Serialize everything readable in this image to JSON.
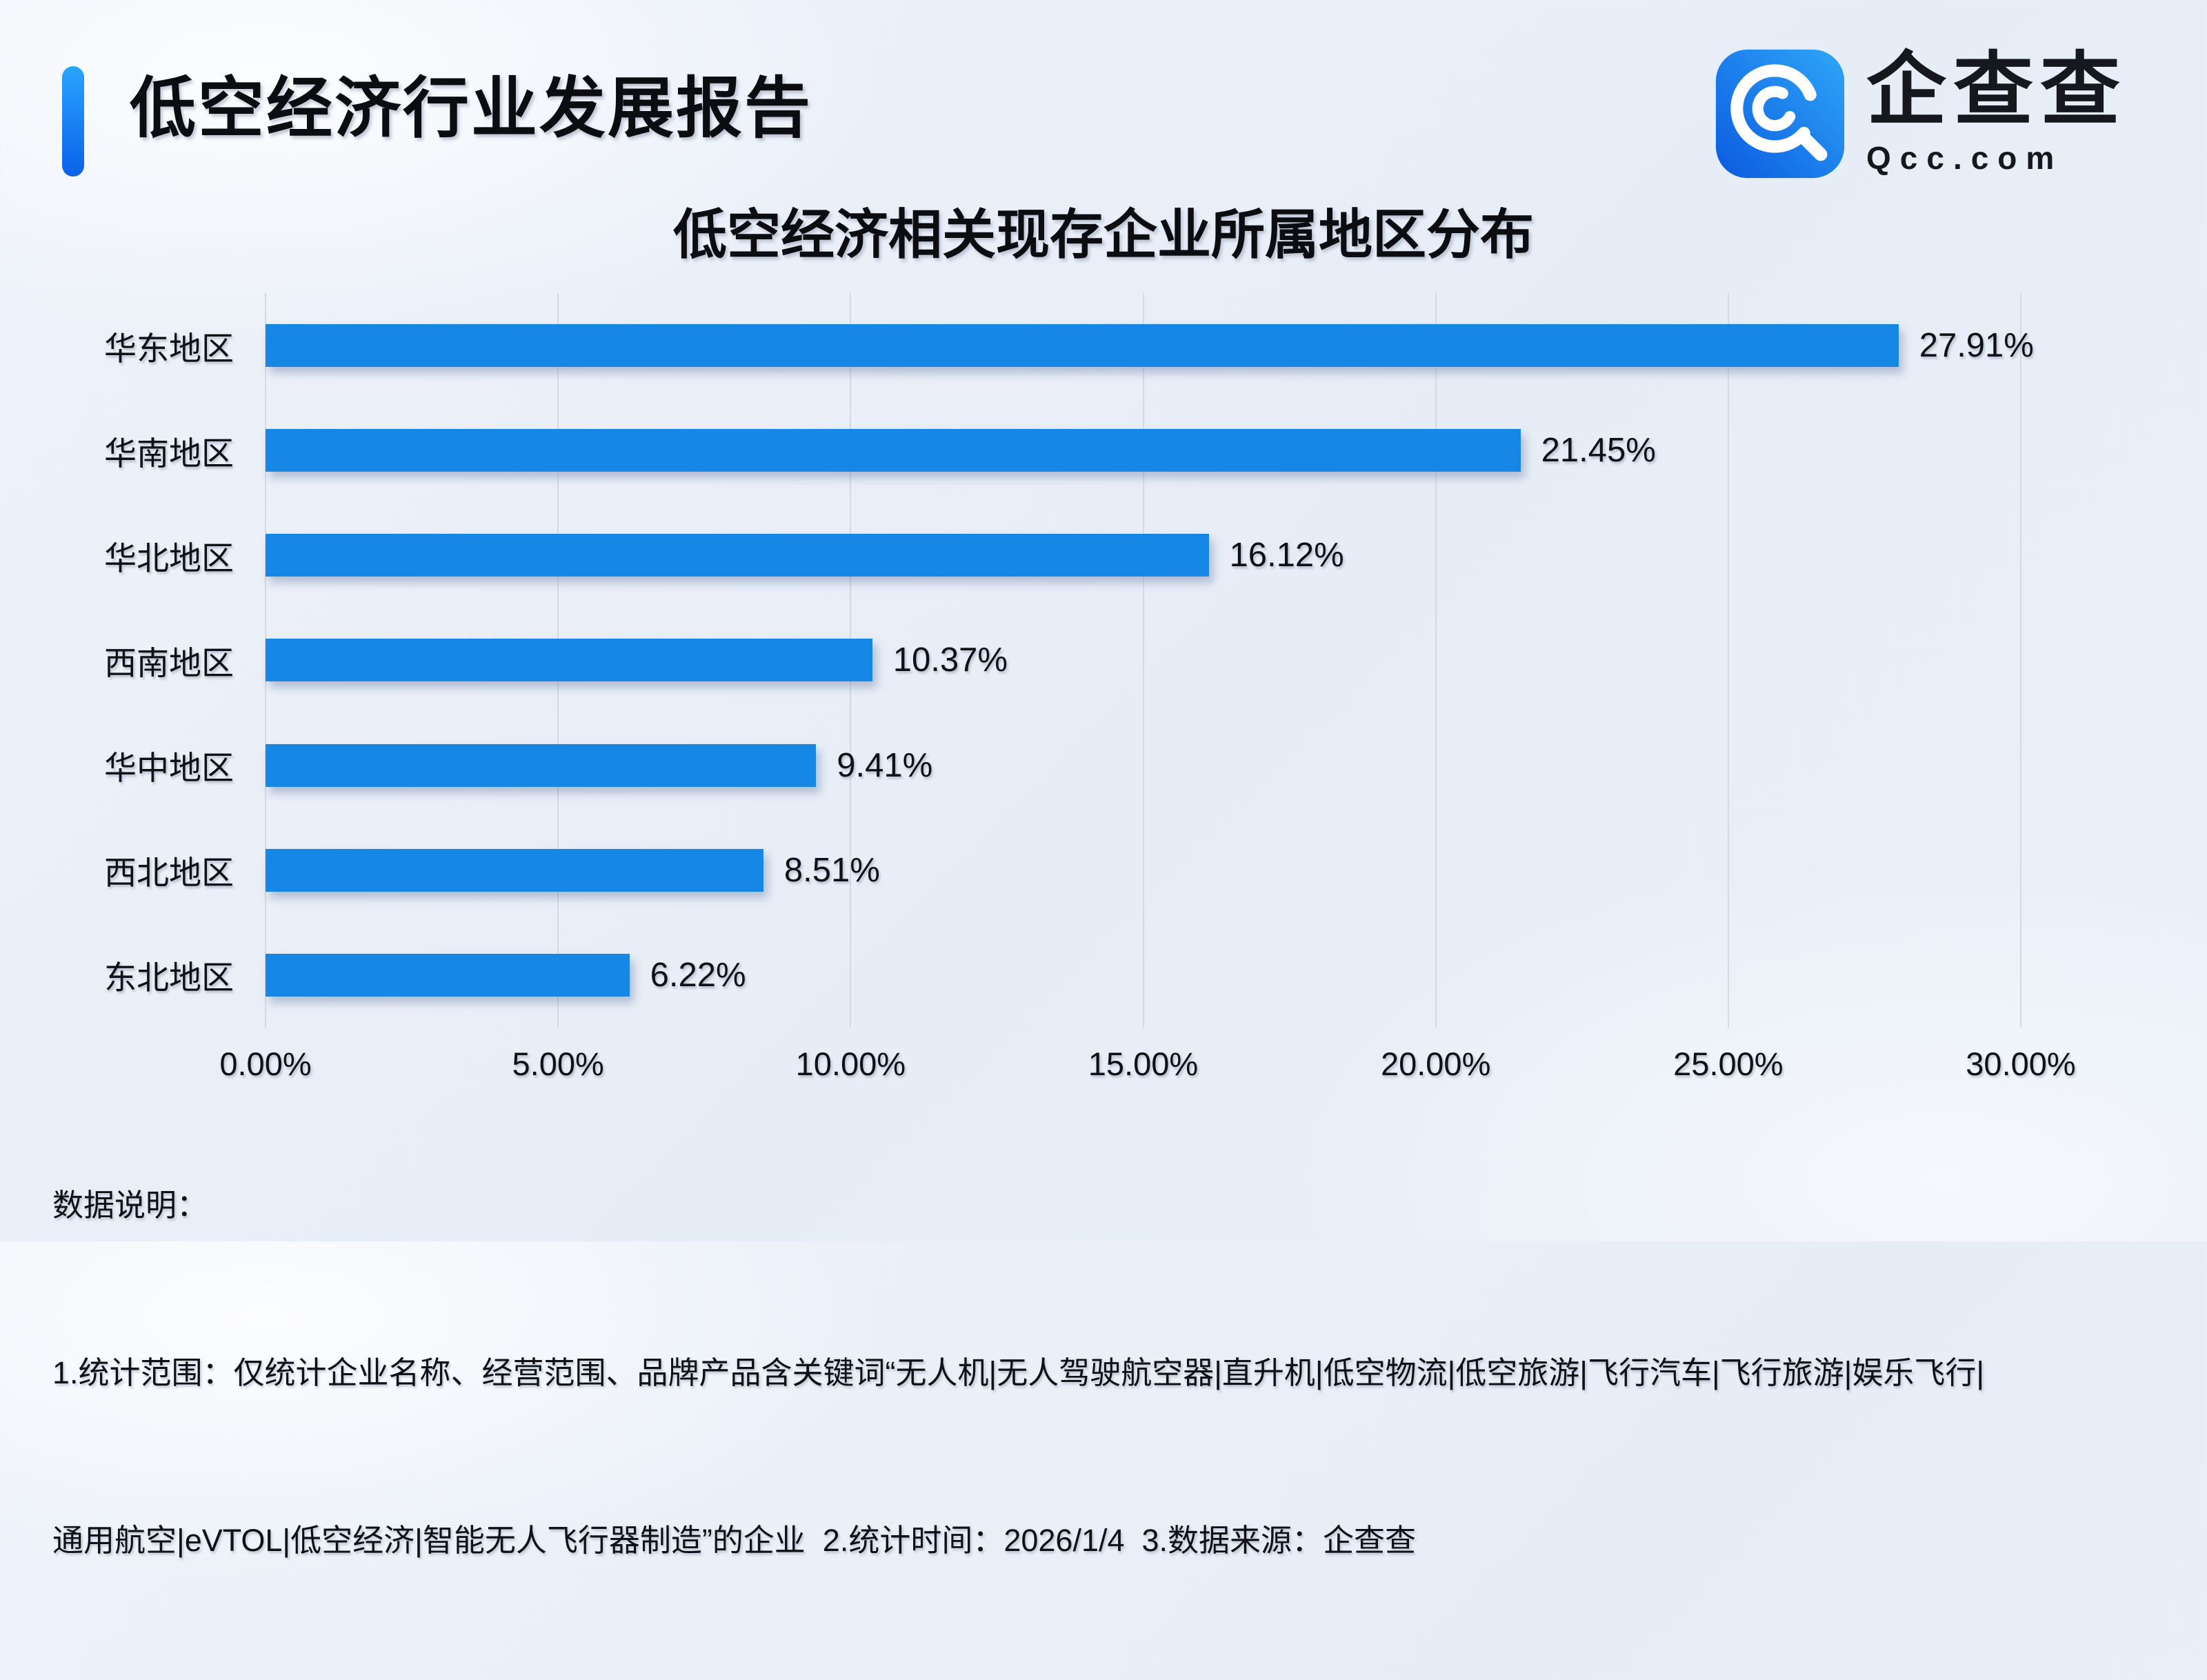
{
  "header": {
    "title": "低空经济行业发展报告",
    "logo": {
      "brand": "企查查",
      "domain": "Qcc.com"
    }
  },
  "chart_data": {
    "type": "bar",
    "orientation": "horizontal",
    "title": "低空经济相关现存企业所属地区分布",
    "categories": [
      "华东地区",
      "华南地区",
      "华北地区",
      "西南地区",
      "华中地区",
      "西北地区",
      "东北地区"
    ],
    "values": [
      27.91,
      21.45,
      16.12,
      10.37,
      9.41,
      8.51,
      6.22
    ],
    "value_labels": [
      "27.91%",
      "21.45%",
      "16.12%",
      "10.37%",
      "9.41%",
      "8.51%",
      "6.22%"
    ],
    "x_ticks": [
      "0.00%",
      "5.00%",
      "10.00%",
      "15.00%",
      "20.00%",
      "25.00%",
      "30.00%"
    ],
    "xlim": [
      0,
      30
    ],
    "xlabel": "",
    "ylabel": "",
    "grid": true,
    "legend": false,
    "bar_color": "#1787E6",
    "gridline_color": "#d5d9e2"
  },
  "notes": {
    "heading": "数据说明：",
    "line1": "1.统计范围：仅统计企业名称、经营范围、品牌产品含关键词“无人机|无人驾驶航空器|直升机|低空物流|低空旅游|飞行汽车|飞行旅游|娱乐飞行|",
    "line2": "通用航空|eVTOL|低空经济|智能无人飞行器制造”的企业  2.统计时间：2026/1/4  3.数据来源：企查查"
  },
  "colors": {
    "accent_gradient_top": "#2AA4FF",
    "accent_gradient_bottom": "#0A62E8",
    "logo_gradient_light": "#2FA6F8",
    "logo_gradient_dark": "#0B5BE0",
    "background": "#ECF1F9"
  }
}
